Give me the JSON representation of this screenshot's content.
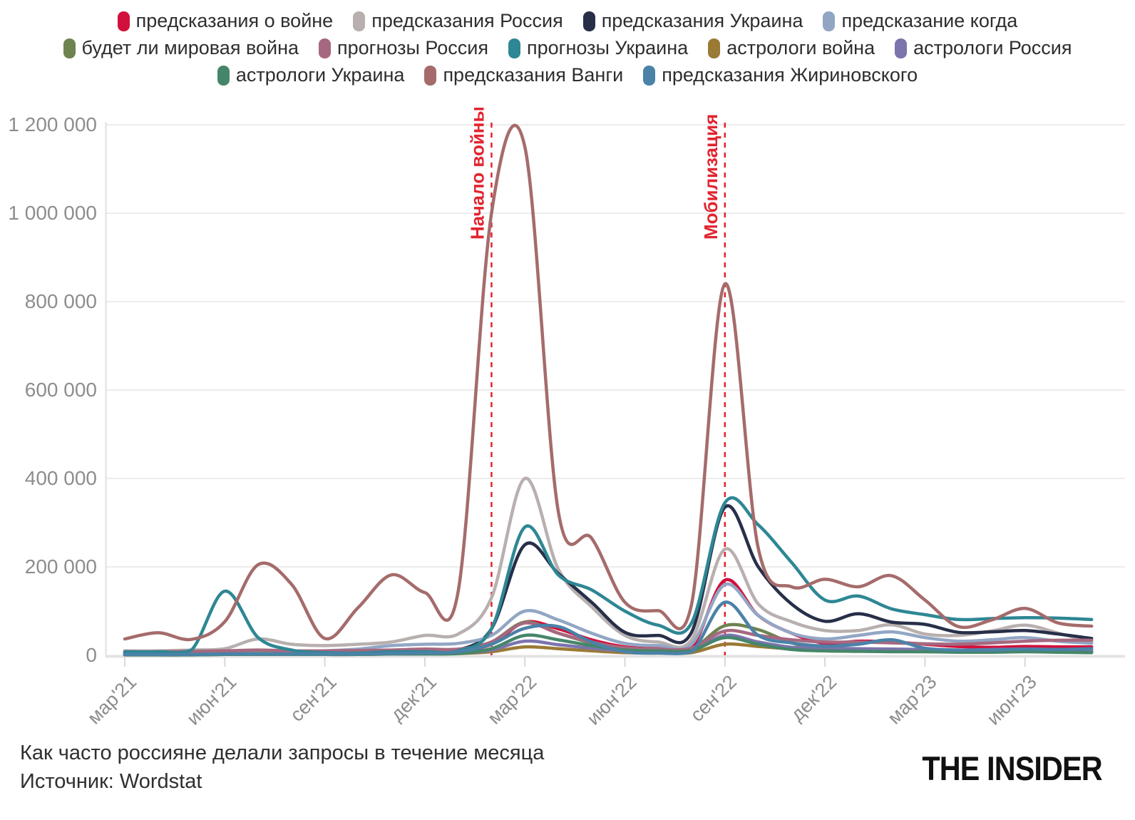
{
  "legend": {
    "rows": [
      [
        0,
        1,
        2,
        3
      ],
      [
        4,
        5,
        6,
        7,
        8
      ],
      [
        9,
        10,
        11
      ]
    ],
    "items": [
      {
        "label": "предсказания о войне",
        "color": "#d2103b"
      },
      {
        "label": "предсказания Россия",
        "color": "#b8afaf"
      },
      {
        "label": "предсказания Украина",
        "color": "#272f49"
      },
      {
        "label": "предсказание когда",
        "color": "#92a6c4"
      },
      {
        "label": "будет ли мировая война",
        "color": "#6e8350"
      },
      {
        "label": "прогнозы Россия",
        "color": "#a66880"
      },
      {
        "label": "прогнозы Украина",
        "color": "#2e8794"
      },
      {
        "label": "астрологи война",
        "color": "#9a7a35"
      },
      {
        "label": "астрологи Россия",
        "color": "#7b74ad"
      },
      {
        "label": "астрологи Украина",
        "color": "#45866a"
      },
      {
        "label": "предсказания Ванги",
        "color": "#a56b6b"
      },
      {
        "label": "предсказания Жириновского",
        "color": "#4a82a8"
      }
    ]
  },
  "chart_data": {
    "type": "line",
    "title": "Как часто россияне делали запросы в течение месяца",
    "source": "Источник: Wordstat",
    "ylim": [
      0,
      1200000
    ],
    "grid": true,
    "legend_position": "top",
    "y_ticks": [
      {
        "value": 0,
        "label": "0"
      },
      {
        "value": 200000,
        "label": "200 000"
      },
      {
        "value": 400000,
        "label": "400 000"
      },
      {
        "value": 600000,
        "label": "600 000"
      },
      {
        "value": 800000,
        "label": "800 000"
      },
      {
        "value": 1000000,
        "label": "1 000 000"
      },
      {
        "value": 1200000,
        "label": "1 200 000"
      }
    ],
    "x_months": [
      "мар'21",
      "апр'21",
      "май'21",
      "июн'21",
      "июл'21",
      "авг'21",
      "сен'21",
      "окт'21",
      "ноя'21",
      "дек'21",
      "янв'22",
      "фев'22",
      "мар'22",
      "апр'22",
      "май'22",
      "июн'22",
      "июл'22",
      "авг'22",
      "сен'22",
      "окт'22",
      "ноя'22",
      "дек'22",
      "янв'23",
      "фев'23",
      "мар'23",
      "апр'23",
      "май'23",
      "июн'23",
      "июл'23",
      "авг'23"
    ],
    "x_ticks": [
      {
        "index": 0,
        "label": "мар'21"
      },
      {
        "index": 3,
        "label": "июн'21"
      },
      {
        "index": 6,
        "label": "сен'21"
      },
      {
        "index": 9,
        "label": "дек'21"
      },
      {
        "index": 12,
        "label": "мар'22"
      },
      {
        "index": 15,
        "label": "июн'22"
      },
      {
        "index": 18,
        "label": "сен'22"
      },
      {
        "index": 21,
        "label": "дек'22"
      },
      {
        "index": 24,
        "label": "мар'23"
      },
      {
        "index": 27,
        "label": "июн'23"
      }
    ],
    "annotations": [
      {
        "label": "Начало войны",
        "month_index": 11
      },
      {
        "label": "Мобилизация",
        "month_index": 18
      }
    ],
    "annotation_color": "#e2242f",
    "series": [
      {
        "name": "предсказания о войне",
        "color": "#d2103b",
        "values": [
          5000,
          5000,
          5000,
          6000,
          7000,
          6000,
          6000,
          7000,
          8000,
          9000,
          10000,
          25000,
          75000,
          60000,
          35000,
          19000,
          15000,
          17000,
          170000,
          90000,
          50000,
          27000,
          32000,
          30000,
          25000,
          20000,
          18000,
          20000,
          19000,
          19000
        ]
      },
      {
        "name": "предсказания Россия",
        "color": "#b8afaf",
        "values": [
          10000,
          10000,
          12000,
          15000,
          37000,
          25000,
          22000,
          25000,
          30000,
          45000,
          48000,
          130000,
          400000,
          195000,
          110000,
          45000,
          30000,
          35000,
          240000,
          116000,
          76000,
          56000,
          56000,
          69000,
          48000,
          45000,
          55000,
          68000,
          50000,
          30000
        ]
      },
      {
        "name": "предсказания Украина",
        "color": "#272f49",
        "values": [
          3000,
          3000,
          4000,
          5000,
          8000,
          6000,
          5000,
          6000,
          8000,
          10000,
          12000,
          60000,
          250000,
          185000,
          120000,
          52000,
          45000,
          52000,
          335000,
          200000,
          116000,
          77000,
          94000,
          75000,
          70000,
          52000,
          53000,
          56000,
          48000,
          38000
        ]
      },
      {
        "name": "предсказание когда",
        "color": "#92a6c4",
        "values": [
          2000,
          2000,
          3000,
          4000,
          6000,
          8000,
          10000,
          14000,
          22000,
          25000,
          27000,
          45000,
          100000,
          80000,
          50000,
          27000,
          22000,
          25000,
          160000,
          90000,
          50000,
          37000,
          45000,
          53000,
          40000,
          32000,
          35000,
          40000,
          32000,
          27000
        ]
      },
      {
        "name": "будет ли мировая война",
        "color": "#6e8350",
        "values": [
          2000,
          2000,
          2000,
          3000,
          4000,
          3000,
          3000,
          4000,
          5000,
          6000,
          8000,
          30000,
          75000,
          50000,
          28000,
          15000,
          12000,
          14000,
          67000,
          58000,
          28000,
          13000,
          12000,
          12000,
          11000,
          10000,
          10000,
          11000,
          10000,
          8000
        ]
      },
      {
        "name": "прогнозы Россия",
        "color": "#a66880",
        "values": [
          8000,
          8000,
          9000,
          10000,
          12000,
          10000,
          10000,
          11000,
          12000,
          14000,
          14000,
          30000,
          73000,
          50000,
          30000,
          17000,
          14000,
          16000,
          55000,
          45000,
          35000,
          30000,
          30000,
          28000,
          26000,
          25000,
          28000,
          32000,
          34000,
          34000
        ]
      },
      {
        "name": "прогнозы Украина",
        "color": "#2e8794",
        "values": [
          8000,
          8000,
          12000,
          145000,
          40000,
          12000,
          6000,
          5000,
          8000,
          8000,
          10000,
          60000,
          290000,
          182000,
          148000,
          100000,
          68000,
          73000,
          345000,
          295000,
          210000,
          125000,
          134000,
          105000,
          92000,
          81000,
          83000,
          85000,
          84000,
          81000
        ]
      },
      {
        "name": "астрологи война",
        "color": "#9a7a35",
        "values": [
          1000,
          1000,
          1000,
          2000,
          2000,
          2000,
          2000,
          2000,
          3000,
          3000,
          4000,
          8000,
          19000,
          15000,
          10000,
          6000,
          5000,
          6000,
          25000,
          20000,
          14000,
          10000,
          9000,
          9000,
          8000,
          8000,
          8000,
          9000,
          8000,
          8000
        ]
      },
      {
        "name": "астрологи Россия",
        "color": "#7b74ad",
        "values": [
          2000,
          2000,
          2000,
          3000,
          3000,
          3000,
          3000,
          3000,
          4000,
          5000,
          5000,
          12000,
          32000,
          24000,
          16000,
          10000,
          8000,
          10000,
          45000,
          30000,
          18000,
          16000,
          15000,
          14000,
          13000,
          12000,
          13000,
          14000,
          13000,
          12000
        ]
      },
      {
        "name": "астрологи Украина",
        "color": "#45866a",
        "values": [
          1000,
          1000,
          1000,
          2000,
          2000,
          2000,
          2000,
          2000,
          3000,
          3000,
          4000,
          15000,
          45000,
          35000,
          22000,
          12000,
          10000,
          11000,
          40000,
          25000,
          13000,
          10000,
          9000,
          8000,
          8000,
          7000,
          7000,
          8000,
          7000,
          6000
        ]
      },
      {
        "name": "предсказания Ванги",
        "color": "#a56b6b",
        "values": [
          37000,
          51000,
          36000,
          76000,
          205000,
          161000,
          38000,
          108000,
          182000,
          142000,
          145000,
          1000000,
          1150000,
          326000,
          265000,
          120000,
          101000,
          115000,
          840000,
          242000,
          155000,
          172000,
          155000,
          180000,
          125000,
          65000,
          80000,
          106000,
          73000,
          66000
        ]
      },
      {
        "name": "предсказания Жириновского",
        "color": "#4a82a8",
        "values": [
          2000,
          2000,
          2000,
          3000,
          3000,
          3000,
          3000,
          3000,
          4000,
          5000,
          8000,
          25000,
          61000,
          65000,
          30000,
          8000,
          5000,
          8000,
          120000,
          45000,
          28000,
          21000,
          25000,
          35000,
          16000,
          12000,
          12000,
          14000,
          13000,
          15000
        ]
      }
    ]
  },
  "footer": {
    "caption": "Как часто россияне делали запросы в течение месяца",
    "source": "Источник: Wordstat",
    "logo": "THE INSIDER"
  }
}
